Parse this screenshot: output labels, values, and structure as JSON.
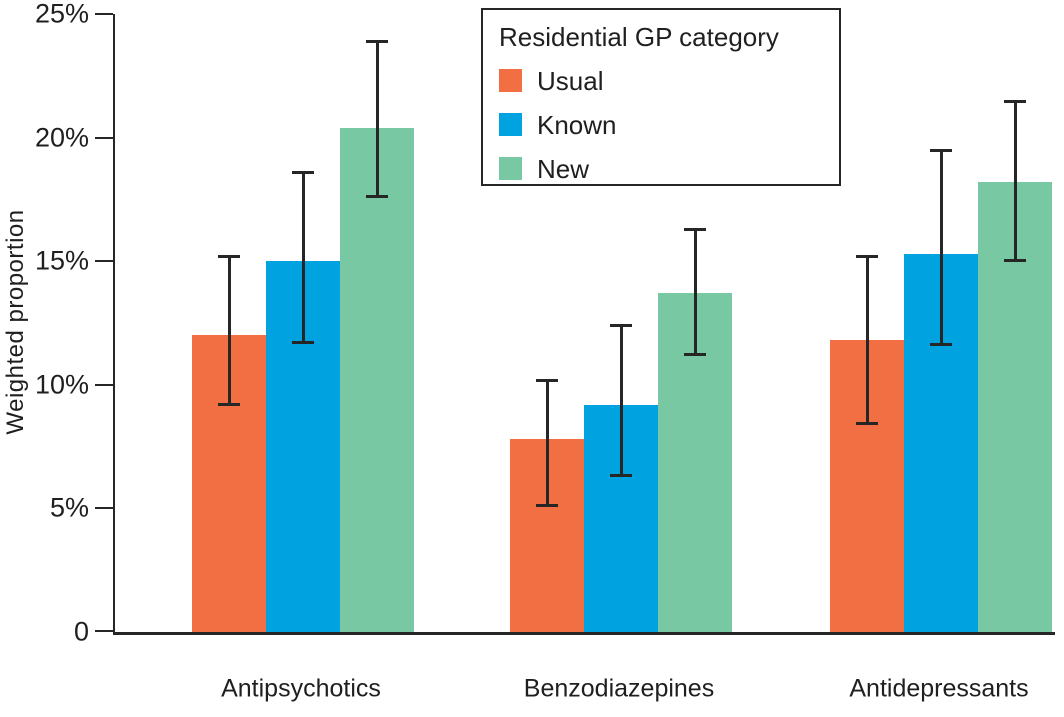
{
  "chart_data": {
    "type": "bar",
    "title": "",
    "xlabel": "",
    "ylabel": "Weighted proportion",
    "ylim": [
      0,
      25
    ],
    "grid": false,
    "error_bars": true,
    "axis_color": "#262626",
    "y_ticks": [
      {
        "value": 0,
        "label": "0"
      },
      {
        "value": 5,
        "label": "5%"
      },
      {
        "value": 10,
        "label": "10%"
      },
      {
        "value": 15,
        "label": "15%"
      },
      {
        "value": 20,
        "label": "20%"
      },
      {
        "value": 25,
        "label": "25%"
      }
    ],
    "categories": [
      "Antipsychotics",
      "Benzodiazepines",
      "Antidepressants"
    ],
    "series": [
      {
        "name": "Usual",
        "color": "#F26F43",
        "values": [
          12.0,
          7.8,
          11.8
        ],
        "ci_low": [
          9.2,
          5.1,
          8.4
        ],
        "ci_high": [
          15.2,
          10.2,
          15.2
        ]
      },
      {
        "name": "Known",
        "color": "#00A3E0",
        "values": [
          15.0,
          9.2,
          15.3
        ],
        "ci_low": [
          11.7,
          6.3,
          11.6
        ],
        "ci_high": [
          18.6,
          12.4,
          19.5
        ]
      },
      {
        "name": "New",
        "color": "#79C8A4",
        "values": [
          20.4,
          13.7,
          18.2
        ],
        "ci_low": [
          17.6,
          11.2,
          15.0
        ],
        "ci_high": [
          23.9,
          16.3,
          21.5
        ]
      }
    ],
    "legend": {
      "title": "Residential GP category",
      "position": "top-center"
    }
  }
}
